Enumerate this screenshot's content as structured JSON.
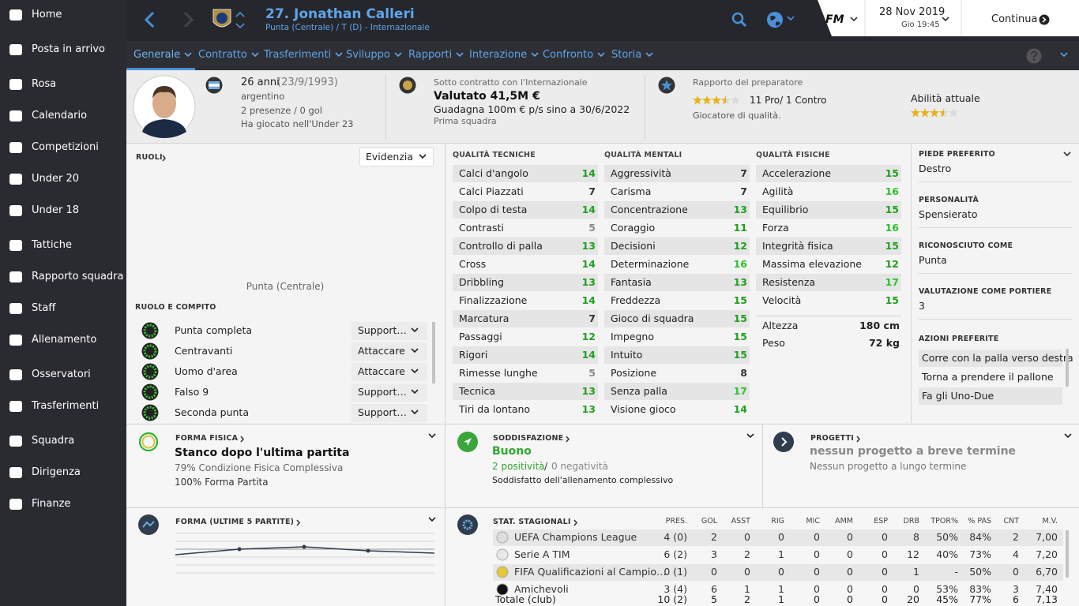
{
  "sidebar": {
    "items": [
      "Home",
      "Posta in arrivo",
      "Rosa",
      "Calendario",
      "Competizioni",
      "Under 20",
      "Under 18",
      "Tattiche",
      "Rapporto squadra",
      "Staff",
      "Allenamento",
      "Osservatori",
      "Trasferimenti",
      "Squadra",
      "Dirigenza",
      "Finanze"
    ]
  },
  "header": {
    "title": "27. Jonathan Calleri",
    "subtitle": "Punta (Centrale) / T (D) - Internazionale",
    "brand": "FM",
    "date": "28 Nov 2019",
    "time": "Gio 19:45",
    "continue": "Continua"
  },
  "tabs": [
    "Generale",
    "Contratto",
    "Trasferimenti",
    "Sviluppo",
    "Rapporti",
    "Interazione",
    "Confronto",
    "Storia"
  ],
  "profile": {
    "age": "26 anni",
    "dob": "(23/9/1993)",
    "nationality": "argentino",
    "apps": "2 presenze / 0 gol",
    "youth": "Ha giocato nell'Under 23"
  },
  "contract": {
    "label": "Sotto contratto con l'Internazionale",
    "value": "Valutato 41,5M €",
    "wage": "Guadagna 100m € p/s sino a 30/6/2022",
    "squad": "Prima squadra"
  },
  "coach": {
    "label": "Rapporto del preparatore",
    "stars": 3.5,
    "pros": "11 Pro/ 1 Contro",
    "desc": "Giocatore di qualità.",
    "ability": "Abilità attuale",
    "ability_stars": 3.5
  },
  "roles": {
    "title": "RUOLI",
    "highlight": "Evidenzia",
    "position": "Punta (Centrale)",
    "section": "RUOLO E COMPITO",
    "list": [
      {
        "role": "Punta completa",
        "duty": "Support…"
      },
      {
        "role": "Centravanti",
        "duty": "Attaccare"
      },
      {
        "role": "Uomo d'area",
        "duty": "Attaccare"
      },
      {
        "role": "Falso 9",
        "duty": "Support…"
      },
      {
        "role": "Seconda punta",
        "duty": "Support…"
      }
    ]
  },
  "attributes": {
    "technical": {
      "title": "QUALITÀ TECNICHE",
      "items": [
        [
          "Calci d'angolo",
          14
        ],
        [
          "Calci Piazzati",
          7
        ],
        [
          "Colpo di testa",
          14
        ],
        [
          "Contrasti",
          5
        ],
        [
          "Controllo di palla",
          13
        ],
        [
          "Cross",
          14
        ],
        [
          "Dribbling",
          13
        ],
        [
          "Finalizzazione",
          14
        ],
        [
          "Marcatura",
          7
        ],
        [
          "Passaggi",
          12
        ],
        [
          "Rigori",
          14
        ],
        [
          "Rimesse lunghe",
          5
        ],
        [
          "Tecnica",
          13
        ],
        [
          "Tiri da lontano",
          13
        ]
      ]
    },
    "mental": {
      "title": "QUALITÀ MENTALI",
      "items": [
        [
          "Aggressività",
          7
        ],
        [
          "Carisma",
          7
        ],
        [
          "Concentrazione",
          13
        ],
        [
          "Coraggio",
          11
        ],
        [
          "Decisioni",
          12
        ],
        [
          "Determinazione",
          16
        ],
        [
          "Fantasia",
          13
        ],
        [
          "Freddezza",
          15
        ],
        [
          "Gioco di squadra",
          15
        ],
        [
          "Impegno",
          15
        ],
        [
          "Intuito",
          15
        ],
        [
          "Posizione",
          8
        ],
        [
          "Senza palla",
          17
        ],
        [
          "Visione gioco",
          14
        ]
      ]
    },
    "physical": {
      "title": "QUALITÀ FISICHE",
      "items": [
        [
          "Accelerazione",
          15
        ],
        [
          "Agilità",
          16
        ],
        [
          "Equilibrio",
          15
        ],
        [
          "Forza",
          16
        ],
        [
          "Integrità fisica",
          15
        ],
        [
          "Massima elevazione",
          12
        ],
        [
          "Resistenza",
          17
        ],
        [
          "Velocità",
          15
        ]
      ],
      "extra": [
        [
          "Altezza",
          "180 cm"
        ],
        [
          "Peso",
          "72 kg"
        ]
      ]
    }
  },
  "info": {
    "fields": [
      [
        "PIEDE PREFERITO",
        "Destro"
      ],
      [
        "PERSONALITÀ",
        "Spensierato"
      ],
      [
        "RICONOSCIUTO COME",
        "Punta"
      ],
      [
        "VALUTAZIONE COME PORTIERE",
        "3"
      ]
    ],
    "actions_title": "AZIONI PREFERITE",
    "actions": [
      "Corre con la palla verso destra",
      "Torna a prendere il pallone",
      "Fa gli Uno-Due"
    ]
  },
  "fitness": {
    "title": "FORMA FISICA",
    "status": "Stanco dopo l'ultima partita",
    "condition": "79% Condizione Fisica Complessiva",
    "match": "100% Forma Partita"
  },
  "satisfaction": {
    "title": "SODDISFAZIONE",
    "status": "Buono",
    "positive": "2 positività",
    "sep": "/",
    "negative": "0 negatività",
    "note": "Soddisfatto dell'allenamento complessivo"
  },
  "projects": {
    "title": "PROGETTI",
    "short": "nessun progetto a breve termine",
    "long": "Nessun progetto a lungo termine"
  },
  "form": {
    "title": "FORMA (ULTIME 5 PARTITE)"
  },
  "stats": {
    "title": "STAT. STAGIONALI",
    "columns": [
      "PRES.",
      "GOL",
      "ASST",
      "RIG",
      "MIC",
      "AMM",
      "ESP",
      "DRB",
      "TPOR%",
      "% PAS",
      "CNT",
      "M.V."
    ],
    "rows": [
      [
        "UEFA Champions League",
        "4 (0)",
        "2",
        "0",
        "0",
        "0",
        "0",
        "0",
        "8",
        "50%",
        "84%",
        "2",
        "7,00"
      ],
      [
        "Serie A TIM",
        "6 (2)",
        "3",
        "2",
        "1",
        "0",
        "0",
        "0",
        "12",
        "40%",
        "73%",
        "4",
        "7,20"
      ],
      [
        "FIFA Qualificazioni al Campio…",
        "0 (1)",
        "0",
        "0",
        "0",
        "0",
        "0",
        "0",
        "1",
        "-",
        "50%",
        "0",
        "6,70"
      ],
      [
        "Amichevoli",
        "3 (4)",
        "6",
        "1",
        "1",
        "0",
        "0",
        "0",
        "0",
        "53%",
        "83%",
        "3",
        "7,40"
      ]
    ],
    "total": [
      "Totale (club)",
      "10 (2)",
      "5",
      "2",
      "1",
      "0",
      "0",
      "0",
      "20",
      "45%",
      "77%",
      "6",
      "7,13"
    ]
  }
}
